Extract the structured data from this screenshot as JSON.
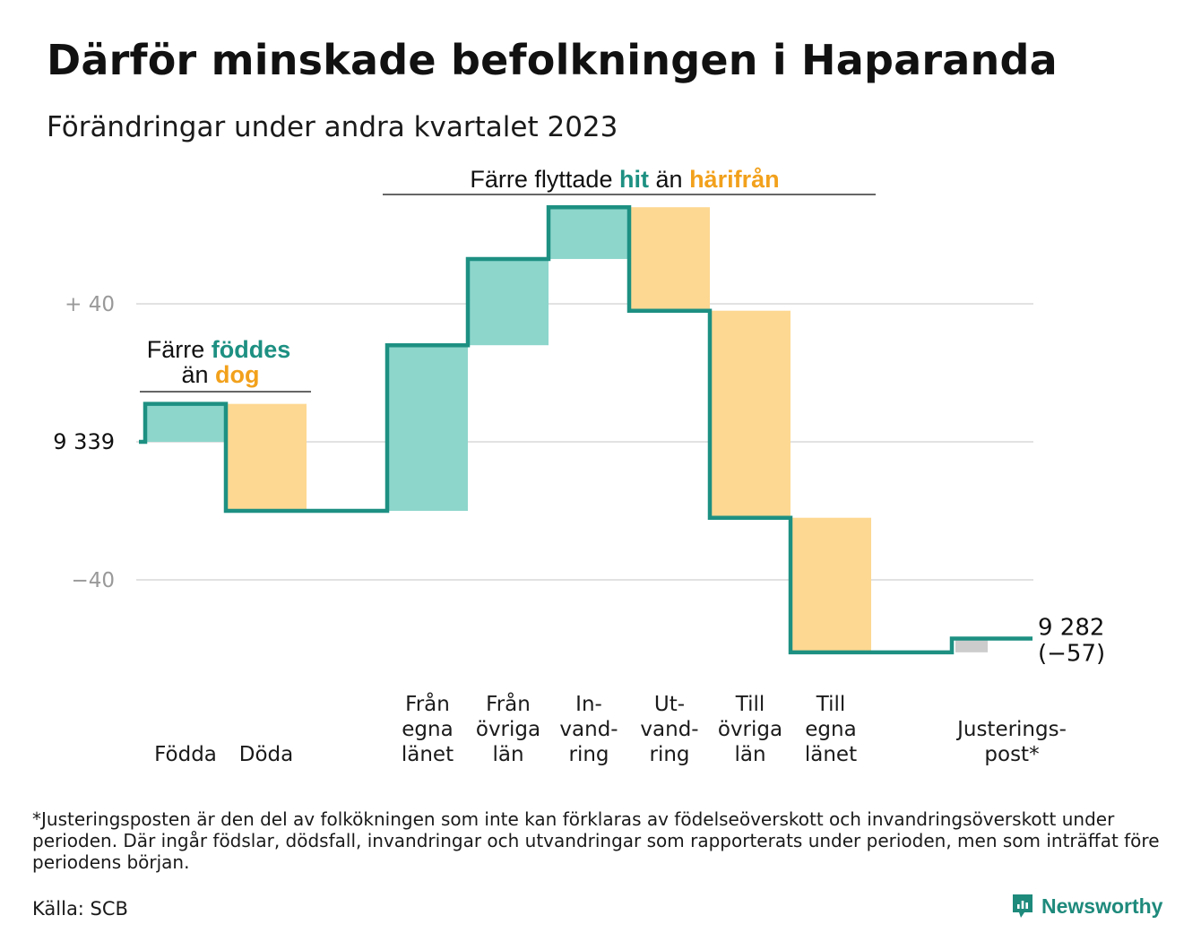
{
  "title": "Därför minskade befolkningen i Haparanda",
  "subtitle": "Förändringar under andra kvartalet 2023",
  "colors": {
    "increase_fill": "#8dd6cc",
    "decrease_fill": "#fdd892",
    "adjustment_fill": "#cccccc",
    "line": "#1d9082",
    "accent_green": "#1d9082",
    "accent_orange": "#f2a11c",
    "grid": "#e2e2e2",
    "tick_text": "#999999"
  },
  "brackets": {
    "births": {
      "line1_prefix": "Färre",
      "line1_highlight": "föddes",
      "line2_prefix": "än",
      "line2_highlight": "dog"
    },
    "migration": {
      "prefix": "Färre flyttade",
      "highlight_in": "hit",
      "middle": "än",
      "highlight_out": "härifrån"
    }
  },
  "footnote": "*Justeringsposten är den del av folkökningen som inte kan förklaras av födelseöverskott och invandringsöverskott under perioden. Där ingår födslar, dödsfall, invandringar och utvandringar som rapporterats under perioden, men som inträffat före periodens början.",
  "source": "Källa: SCB",
  "brand": "Newsworthy",
  "chart_data": {
    "type": "waterfall",
    "start_value": 9339,
    "start_label": "9  339",
    "end_value": 9282,
    "end_label": "9 282",
    "end_change_label": "(−57)",
    "y_ticks": [
      {
        "value": 40,
        "label": "+  40"
      },
      {
        "value": 0,
        "label": "9  339"
      },
      {
        "value": -40,
        "label": "−40"
      }
    ],
    "ylim": [
      -60,
      65
    ],
    "steps": [
      {
        "label_lines": [
          "Födda"
        ],
        "change": 11,
        "kind": "increase"
      },
      {
        "label_lines": [
          "Döda"
        ],
        "change": -31,
        "kind": "decrease"
      },
      {
        "label_lines": [
          "Från",
          "egna",
          "länet"
        ],
        "change": 48,
        "kind": "increase"
      },
      {
        "label_lines": [
          "Från",
          "övriga",
          "län"
        ],
        "change": 25,
        "kind": "increase"
      },
      {
        "label_lines": [
          "In-",
          "vand-",
          "ring"
        ],
        "change": 15,
        "kind": "increase"
      },
      {
        "label_lines": [
          "Ut-",
          "vand-",
          "ring"
        ],
        "change": -30,
        "kind": "decrease"
      },
      {
        "label_lines": [
          "Till",
          "övriga",
          "län"
        ],
        "change": -60,
        "kind": "decrease"
      },
      {
        "label_lines": [
          "Till",
          "egna",
          "länet"
        ],
        "change": -39,
        "kind": "decrease"
      },
      {
        "label_lines": [
          "Justerings-",
          "post*"
        ],
        "change": 4,
        "kind": "adjustment"
      }
    ]
  }
}
